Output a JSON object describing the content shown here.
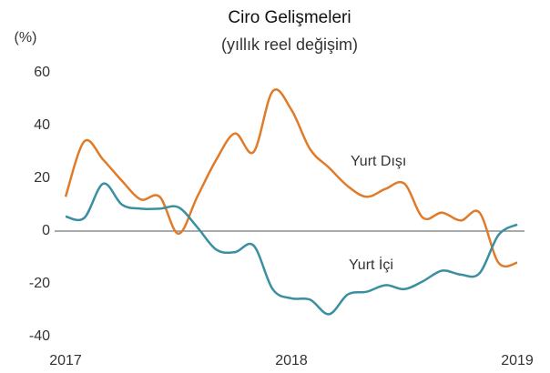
{
  "chart_data": {
    "type": "line",
    "title": "Ciro Gelişmeleri",
    "subtitle": "(yıllık reel değişim)",
    "y_label": "(%)",
    "x": [
      2017,
      2017.083,
      2017.167,
      2017.25,
      2017.333,
      2017.417,
      2017.5,
      2017.583,
      2017.667,
      2017.75,
      2017.833,
      2017.917,
      2018,
      2018.083,
      2018.167,
      2018.25,
      2018.333,
      2018.417,
      2018.5,
      2018.583,
      2018.667,
      2018.75,
      2018.833,
      2018.917,
      2019
    ],
    "series": [
      {
        "name": "Yurt Dışı",
        "color": "#e07b2a",
        "values": [
          13,
          34,
          27,
          19,
          12,
          13,
          -1,
          13,
          27,
          37,
          30,
          53,
          46,
          31,
          24,
          17,
          13,
          16,
          18,
          5,
          7,
          4,
          7,
          -12,
          -12
        ]
      },
      {
        "name": "Yurt İçi",
        "color": "#3a8fa0",
        "values": [
          5.5,
          5,
          18,
          10,
          8.5,
          8.5,
          9,
          1.5,
          -7,
          -8,
          -5.5,
          -22,
          -25.5,
          -26,
          -31.5,
          -24,
          -23,
          -20.5,
          -22,
          -19,
          -15,
          -16.5,
          -16,
          -1.5,
          2.5
        ]
      }
    ],
    "xlim": [
      2017,
      2019
    ],
    "xticks": [
      2017,
      2018,
      2019
    ],
    "ylim": [
      -40,
      60
    ],
    "yticks": [
      -40,
      -20,
      0,
      20,
      40,
      60
    ]
  }
}
